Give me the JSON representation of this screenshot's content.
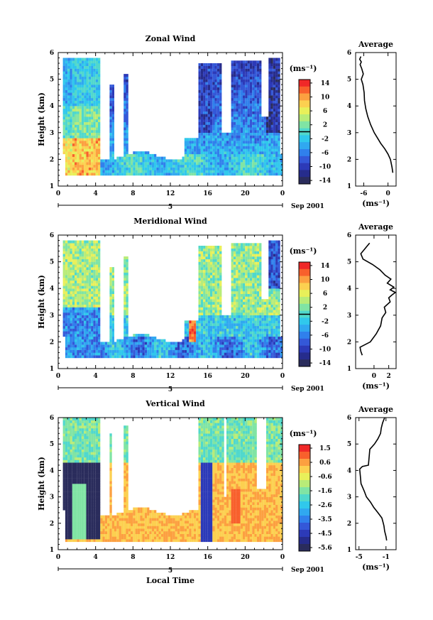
{
  "chart_data": [
    {
      "type": "heatmap",
      "title": "Zonal Wind",
      "ylabel": "Height (km)",
      "x_ticks": [
        "0",
        "4",
        "8",
        "12",
        "16",
        "20",
        "0"
      ],
      "y_ticks": [
        "1",
        "2",
        "3",
        "4",
        "5",
        "6"
      ],
      "ylim": [
        1,
        6
      ],
      "date_label": "Sep 2001",
      "day_label": "5",
      "colorbar": {
        "unit": "(ms⁻¹)",
        "ticks": [
          "14",
          "10",
          "6",
          "2",
          "-2",
          "-6",
          "-10",
          "-14"
        ],
        "range": [
          -16,
          16
        ],
        "contour_level": 0
      },
      "profile": {
        "title": "Average",
        "xlabel": "(ms⁻¹)",
        "x_ticks": [
          "-6",
          "0"
        ],
        "xlim": [
          -8,
          2
        ],
        "y_ticks": [
          "1",
          "2",
          "3",
          "4",
          "5",
          "6"
        ],
        "ylim": [
          1,
          6
        ],
        "x": [
          1.2,
          1.0,
          0.6,
          0.0,
          -0.8,
          -1.8,
          -2.6,
          -3.4,
          -4.3,
          -5.0,
          -5.5,
          -5.8,
          -5.9,
          -6.2,
          -6.6,
          -6.1,
          -6.5,
          -6.9,
          -6.6,
          -7.0,
          -6.7
        ],
        "y": [
          1.5,
          1.7,
          2.0,
          2.2,
          2.4,
          2.6,
          2.8,
          3.0,
          3.3,
          3.6,
          3.9,
          4.2,
          4.5,
          4.8,
          5.0,
          5.2,
          5.4,
          5.55,
          5.65,
          5.75,
          5.85
        ]
      }
    },
    {
      "type": "heatmap",
      "title": "Meridional Wind",
      "ylabel": "Height (km)",
      "x_ticks": [
        "0",
        "4",
        "8",
        "12",
        "16",
        "20",
        "0"
      ],
      "y_ticks": [
        "1",
        "2",
        "3",
        "4",
        "5",
        "6"
      ],
      "ylim": [
        1,
        6
      ],
      "date_label": "Sep 2001",
      "day_label": "5",
      "colorbar": {
        "unit": "(ms⁻¹)",
        "ticks": [
          "14",
          "10",
          "6",
          "2",
          "-2",
          "-6",
          "-10",
          "-14"
        ],
        "range": [
          -16,
          16
        ],
        "contour_level": 0
      },
      "profile": {
        "title": "Average",
        "xlabel": "(ms⁻¹)",
        "x_ticks": [
          "0",
          "2"
        ],
        "xlim": [
          -2.5,
          3
        ],
        "y_ticks": [
          "1",
          "2",
          "3",
          "4",
          "5",
          "6"
        ],
        "ylim": [
          1,
          6
        ],
        "x": [
          -1.6,
          -1.8,
          -1.9,
          -0.5,
          0.3,
          0.9,
          1.1,
          1.6,
          1.4,
          2.2,
          2.0,
          2.4,
          2.9,
          2.2,
          2.7,
          1.8,
          2.3,
          1.5,
          0.8,
          -0.2,
          -1.5,
          -1.8,
          -1.2,
          -0.6
        ],
        "y": [
          1.5,
          1.65,
          1.8,
          2.0,
          2.3,
          2.6,
          2.9,
          3.1,
          3.3,
          3.5,
          3.65,
          3.75,
          3.85,
          3.95,
          4.05,
          4.2,
          4.35,
          4.5,
          4.7,
          4.9,
          5.1,
          5.3,
          5.5,
          5.7
        ]
      }
    },
    {
      "type": "heatmap",
      "title": "Vertical Wind",
      "ylabel": "Height (km)",
      "xlabel": "Local Time",
      "x_ticks": [
        "0",
        "4",
        "8",
        "12",
        "16",
        "20",
        "0"
      ],
      "y_ticks": [
        "1",
        "2",
        "3",
        "4",
        "5",
        "6"
      ],
      "ylim": [
        1,
        6
      ],
      "date_label": "Sep 2001",
      "day_label": "5",
      "colorbar": {
        "unit": "(ms⁻¹)",
        "ticks": [
          "1.5",
          "0.6",
          "-0.6",
          "-1.6",
          "-2.6",
          "-3.5",
          "-4.5",
          "-5.6"
        ],
        "range": [
          -6.2,
          2.1
        ],
        "contour_level": null
      },
      "profile": {
        "title": "Average",
        "xlabel": "(ms⁻¹)",
        "x_ticks": [
          "-5",
          "-1"
        ],
        "xlim": [
          -5.5,
          0.5
        ],
        "y_ticks": [
          "1",
          "2",
          "3",
          "4",
          "5",
          "6"
        ],
        "ylim": [
          1,
          6
        ],
        "x": [
          -0.9,
          -1.0,
          -1.2,
          -1.3,
          -1.4,
          -1.6,
          -2.2,
          -2.8,
          -3.3,
          -3.9,
          -4.2,
          -4.7,
          -4.8,
          -4.9,
          -4.5,
          -3.6,
          -3.5,
          -3.4,
          -2.7,
          -2.2,
          -1.8,
          -1.7,
          -1.5,
          -1.2
        ],
        "y": [
          1.35,
          1.5,
          1.7,
          1.9,
          2.0,
          2.2,
          2.4,
          2.6,
          2.8,
          3.0,
          3.2,
          3.5,
          3.8,
          4.05,
          4.15,
          4.2,
          4.5,
          4.8,
          5.0,
          5.2,
          5.4,
          5.6,
          5.8,
          6.0
        ]
      }
    }
  ]
}
